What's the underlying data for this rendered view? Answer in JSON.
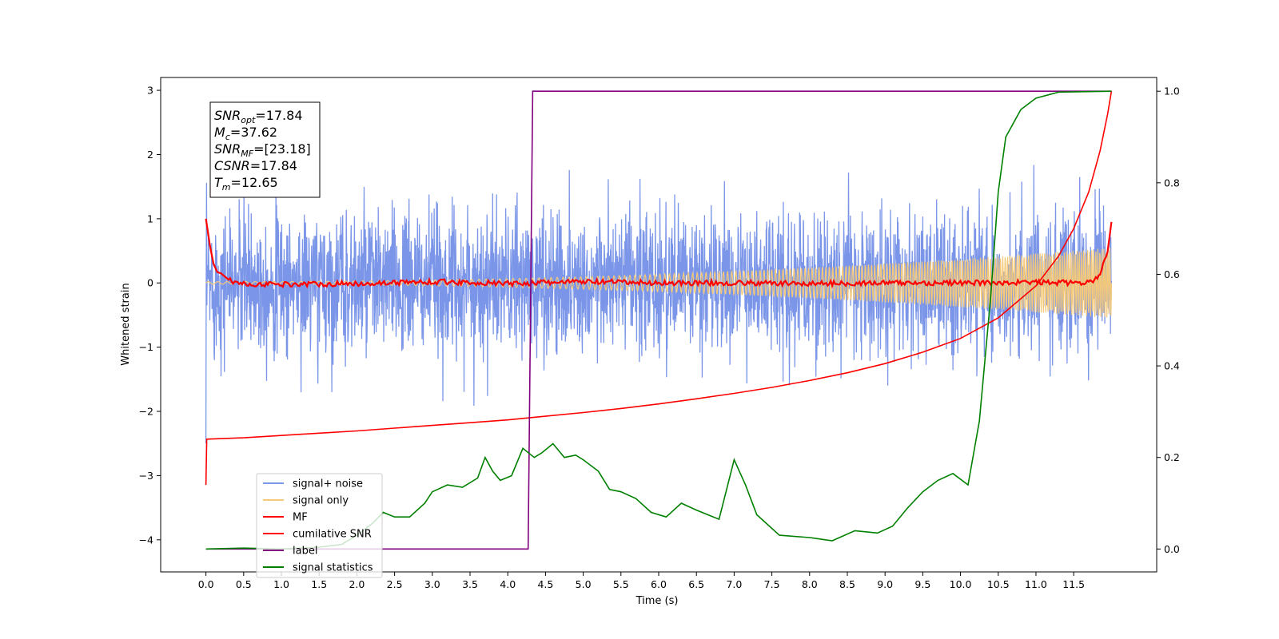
{
  "chart_data": {
    "type": "line",
    "xlabel": "Time (s)",
    "ylabel": "Whitened strain",
    "xlim": [
      -0.6,
      12.6
    ],
    "ylim": [
      -4.5,
      3.2
    ],
    "y2lim": [
      -0.05,
      1.03
    ],
    "xticks": [
      "0.0",
      "0.5",
      "1.0",
      "1.5",
      "2.0",
      "2.5",
      "3.0",
      "3.5",
      "4.0",
      "4.5",
      "5.0",
      "5.5",
      "6.0",
      "6.5",
      "7.0",
      "7.5",
      "8.0",
      "8.5",
      "9.0",
      "9.5",
      "10.0",
      "10.5",
      "11.0",
      "11.5"
    ],
    "yticks": [
      "3",
      "2",
      "1",
      "0",
      "−1",
      "−2",
      "−3",
      "−4"
    ],
    "y2ticks": [
      "1.0",
      "0.8",
      "0.6",
      "0.4",
      "0.2",
      "0.0"
    ],
    "grid": false,
    "legend_position": "lower-left",
    "annotation": [
      {
        "sym": "SNR",
        "sub": "opt",
        "value": "=17.84"
      },
      {
        "sym": "M",
        "sub": "c",
        "value": "=37.62"
      },
      {
        "sym": "SNR",
        "sub": "MF",
        "value": "=[23.18]"
      },
      {
        "sym": "CSNR",
        "sub": "",
        "value": "=17.84"
      },
      {
        "sym": "T",
        "sub": "m",
        "value": "=12.65"
      }
    ],
    "series": [
      {
        "name": "signal+ noise",
        "color": "#7b96e8",
        "axis": "left",
        "kind": "noise",
        "amplitude_range": [
          -2.0,
          1.85
        ]
      },
      {
        "name": "signal only",
        "color": "#f5c97a",
        "axis": "left",
        "kind": "chirp",
        "amplitude_start": 0.02,
        "amplitude_end": 0.55
      },
      {
        "name": "MF",
        "color": "#ff0000",
        "axis": "left",
        "points": [
          [
            0.0,
            1.0
          ],
          [
            0.05,
            0.6
          ],
          [
            0.1,
            0.3
          ],
          [
            0.15,
            0.17
          ],
          [
            0.2,
            0.15
          ],
          [
            0.3,
            0.05
          ],
          [
            0.5,
            -0.02
          ],
          [
            1.0,
            -0.02
          ],
          [
            2.0,
            -0.01
          ],
          [
            3.0,
            0.02
          ],
          [
            4.0,
            -0.01
          ],
          [
            5.0,
            0.02
          ],
          [
            6.0,
            0.0
          ],
          [
            7.0,
            0.0
          ],
          [
            8.0,
            -0.01
          ],
          [
            9.0,
            0.0
          ],
          [
            10.0,
            0.0
          ],
          [
            11.0,
            0.01
          ],
          [
            11.7,
            0.0
          ],
          [
            11.85,
            0.12
          ],
          [
            11.95,
            0.5
          ],
          [
            12.0,
            0.95
          ]
        ]
      },
      {
        "name": "cumilative SNR",
        "color": "#ff0000",
        "axis": "right",
        "points": [
          [
            0.0,
            0.14
          ],
          [
            0.01,
            0.24
          ],
          [
            0.5,
            0.243
          ],
          [
            1.0,
            0.248
          ],
          [
            1.5,
            0.253
          ],
          [
            2.0,
            0.258
          ],
          [
            2.5,
            0.264
          ],
          [
            3.0,
            0.27
          ],
          [
            3.5,
            0.276
          ],
          [
            4.0,
            0.282
          ],
          [
            4.5,
            0.29
          ],
          [
            5.0,
            0.298
          ],
          [
            5.5,
            0.307
          ],
          [
            6.0,
            0.317
          ],
          [
            6.5,
            0.328
          ],
          [
            7.0,
            0.34
          ],
          [
            7.5,
            0.353
          ],
          [
            8.0,
            0.368
          ],
          [
            8.5,
            0.385
          ],
          [
            9.0,
            0.405
          ],
          [
            9.5,
            0.43
          ],
          [
            10.0,
            0.46
          ],
          [
            10.5,
            0.505
          ],
          [
            11.0,
            0.575
          ],
          [
            11.3,
            0.64
          ],
          [
            11.5,
            0.7
          ],
          [
            11.7,
            0.78
          ],
          [
            11.85,
            0.87
          ],
          [
            11.95,
            0.95
          ],
          [
            12.0,
            1.0
          ]
        ]
      },
      {
        "name": "label",
        "color": "#800080",
        "axis": "right",
        "points": [
          [
            0.0,
            0.0
          ],
          [
            4.27,
            0.0
          ],
          [
            4.33,
            1.0
          ],
          [
            12.0,
            1.0
          ]
        ]
      },
      {
        "name": "signal statistics",
        "color": "#008000",
        "axis": "right",
        "points": [
          [
            0.0,
            0.0
          ],
          [
            0.5,
            0.002
          ],
          [
            1.0,
            0.0
          ],
          [
            1.5,
            0.004
          ],
          [
            1.8,
            0.01
          ],
          [
            2.0,
            0.03
          ],
          [
            2.2,
            0.055
          ],
          [
            2.35,
            0.08
          ],
          [
            2.5,
            0.07
          ],
          [
            2.7,
            0.07
          ],
          [
            2.9,
            0.1
          ],
          [
            3.0,
            0.125
          ],
          [
            3.2,
            0.14
          ],
          [
            3.4,
            0.135
          ],
          [
            3.6,
            0.155
          ],
          [
            3.7,
            0.2
          ],
          [
            3.8,
            0.17
          ],
          [
            3.9,
            0.15
          ],
          [
            4.05,
            0.16
          ],
          [
            4.2,
            0.22
          ],
          [
            4.35,
            0.2
          ],
          [
            4.45,
            0.21
          ],
          [
            4.6,
            0.23
          ],
          [
            4.75,
            0.2
          ],
          [
            4.9,
            0.205
          ],
          [
            5.0,
            0.195
          ],
          [
            5.2,
            0.17
          ],
          [
            5.35,
            0.13
          ],
          [
            5.5,
            0.125
          ],
          [
            5.7,
            0.11
          ],
          [
            5.9,
            0.08
          ],
          [
            6.1,
            0.07
          ],
          [
            6.3,
            0.1
          ],
          [
            6.5,
            0.085
          ],
          [
            6.8,
            0.065
          ],
          [
            7.0,
            0.195
          ],
          [
            7.15,
            0.14
          ],
          [
            7.3,
            0.075
          ],
          [
            7.6,
            0.03
          ],
          [
            8.0,
            0.025
          ],
          [
            8.3,
            0.018
          ],
          [
            8.6,
            0.04
          ],
          [
            8.9,
            0.035
          ],
          [
            9.1,
            0.05
          ],
          [
            9.3,
            0.09
          ],
          [
            9.5,
            0.125
          ],
          [
            9.7,
            0.15
          ],
          [
            9.9,
            0.165
          ],
          [
            10.1,
            0.14
          ],
          [
            10.25,
            0.28
          ],
          [
            10.4,
            0.55
          ],
          [
            10.5,
            0.78
          ],
          [
            10.6,
            0.9
          ],
          [
            10.8,
            0.96
          ],
          [
            11.0,
            0.985
          ],
          [
            11.3,
            0.998
          ],
          [
            12.0,
            1.0
          ]
        ]
      }
    ]
  }
}
